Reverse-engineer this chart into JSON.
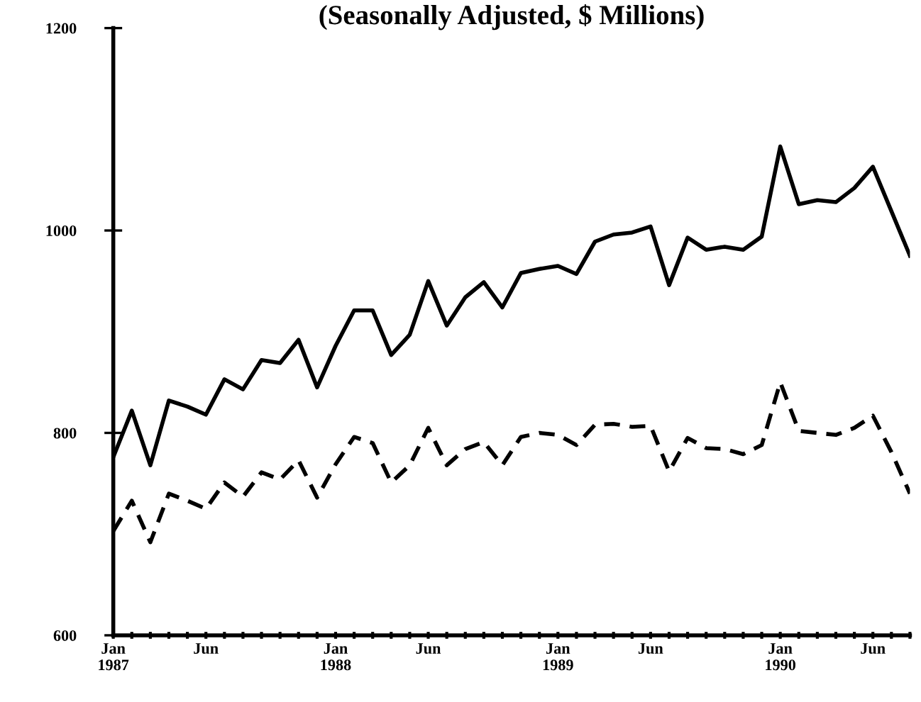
{
  "chart_data": {
    "type": "line",
    "title": "(Seasonally Adjusted, $ Millions)",
    "x": [
      "1987-01",
      "1987-02",
      "1987-03",
      "1987-04",
      "1987-05",
      "1987-06",
      "1987-07",
      "1987-08",
      "1987-09",
      "1987-10",
      "1987-11",
      "1987-12",
      "1988-01",
      "1988-02",
      "1988-03",
      "1988-04",
      "1988-05",
      "1988-06",
      "1988-07",
      "1988-08",
      "1988-09",
      "1988-10",
      "1988-11",
      "1988-12",
      "1989-01",
      "1989-02",
      "1989-03",
      "1989-04",
      "1989-05",
      "1989-06",
      "1989-07",
      "1989-08",
      "1989-09",
      "1989-10",
      "1989-11",
      "1989-12",
      "1990-01",
      "1990-02",
      "1990-03",
      "1990-04",
      "1990-05",
      "1990-06",
      "1990-07",
      "1990-08"
    ],
    "series": [
      {
        "color": "#000000",
        "line_style": "solid",
        "values": [
          776,
          822,
          768,
          832,
          826,
          818,
          853,
          843,
          872,
          869,
          892,
          845,
          886,
          921,
          921,
          877,
          897,
          950,
          906,
          934,
          949,
          924,
          958,
          962,
          965,
          957,
          989,
          996,
          998,
          1004,
          946,
          993,
          981,
          984,
          981,
          994,
          1083,
          1026,
          1030,
          1028,
          1042,
          1063,
          1019,
          975
        ]
      },
      {
        "color": "#000000",
        "line_style": "dashed",
        "values": [
          703,
          733,
          692,
          740,
          733,
          725,
          751,
          737,
          761,
          754,
          773,
          736,
          769,
          796,
          790,
          751,
          768,
          805,
          768,
          784,
          791,
          768,
          796,
          800,
          798,
          788,
          808,
          809,
          806,
          807,
          762,
          795,
          785,
          784,
          779,
          788,
          850,
          802,
          800,
          798,
          805,
          817,
          781,
          740
        ]
      }
    ],
    "ylim": [
      600,
      1200
    ],
    "yticks": [
      600,
      800,
      1000,
      1200
    ],
    "xlim": [
      "1987-01",
      "1990-08"
    ],
    "xticks": [
      {
        "value": "1987-01",
        "label": "Jan\n1987"
      },
      {
        "value": "1987-02",
        "label": null
      },
      {
        "value": "1987-03",
        "label": null
      },
      {
        "value": "1987-04",
        "label": null
      },
      {
        "value": "1987-05",
        "label": null
      },
      {
        "value": "1987-06",
        "label": "Jun"
      },
      {
        "value": "1987-07",
        "label": null
      },
      {
        "value": "1987-08",
        "label": null
      },
      {
        "value": "1987-09",
        "label": null
      },
      {
        "value": "1987-10",
        "label": null
      },
      {
        "value": "1987-11",
        "label": null
      },
      {
        "value": "1987-12",
        "label": null
      },
      {
        "value": "1988-01",
        "label": "Jan\n1988"
      },
      {
        "value": "1988-02",
        "label": null
      },
      {
        "value": "1988-03",
        "label": null
      },
      {
        "value": "1988-04",
        "label": null
      },
      {
        "value": "1988-05",
        "label": null
      },
      {
        "value": "1988-06",
        "label": "Jun"
      },
      {
        "value": "1988-07",
        "label": null
      },
      {
        "value": "1988-08",
        "label": null
      },
      {
        "value": "1988-09",
        "label": null
      },
      {
        "value": "1988-10",
        "label": null
      },
      {
        "value": "1988-11",
        "label": null
      },
      {
        "value": "1988-12",
        "label": null
      },
      {
        "value": "1989-01",
        "label": "Jan\n1989"
      },
      {
        "value": "1989-02",
        "label": null
      },
      {
        "value": "1989-03",
        "label": null
      },
      {
        "value": "1989-04",
        "label": null
      },
      {
        "value": "1989-05",
        "label": null
      },
      {
        "value": "1989-06",
        "label": "Jun"
      },
      {
        "value": "1989-07",
        "label": null
      },
      {
        "value": "1989-08",
        "label": null
      },
      {
        "value": "1989-09",
        "label": null
      },
      {
        "value": "1989-10",
        "label": null
      },
      {
        "value": "1989-11",
        "label": null
      },
      {
        "value": "1989-12",
        "label": null
      },
      {
        "value": "1990-01",
        "label": "Jan\n1990"
      },
      {
        "value": "1990-02",
        "label": null
      },
      {
        "value": "1990-03",
        "label": null
      },
      {
        "value": "1990-04",
        "label": null
      },
      {
        "value": "1990-05",
        "label": null
      },
      {
        "value": "1990-06",
        "label": "Jun"
      },
      {
        "value": "1990-07",
        "label": null
      },
      {
        "value": "1990-08",
        "label": null
      }
    ],
    "grid": false,
    "legend": false,
    "marker": "none"
  }
}
